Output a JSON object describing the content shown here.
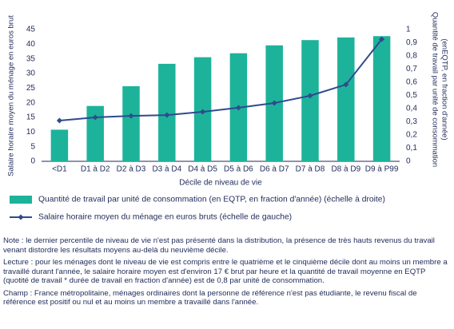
{
  "chart_data": {
    "type": "bar",
    "xlabel": "Décile de niveau de vie",
    "ylabel": "Salaire horaire moyen du ménage en euros brut",
    "y2label": [
      "Quantité de travail par unité de consommation",
      "(enEQTP, en fraction d'année)"
    ],
    "categories": [
      "<D1",
      "D1 à D2",
      "D2 à D3",
      "D3 à D4",
      "D4 à D5",
      "D5 à D6",
      "D6 à D7",
      "D7 à D8",
      "D8 à D9",
      "D9 à P99"
    ],
    "series": [
      {
        "name": "Quantité de travail par unité de consommation (en EQTP, en fraction d'année) (échelle à droite)",
        "type": "bar",
        "axis": "y2",
        "color": "#1db39b",
        "values": [
          0.24,
          0.42,
          0.57,
          0.74,
          0.79,
          0.82,
          0.88,
          0.92,
          0.94,
          0.95
        ]
      },
      {
        "name": "Salaire horaire moyen du ménage en euros bruts (échelle de gauche)",
        "type": "line",
        "color": "#2e4b8c",
        "values": [
          13.9,
          15.0,
          15.5,
          15.8,
          16.9,
          18.3,
          19.9,
          22.4,
          26.2,
          41.7
        ]
      }
    ],
    "ylim": [
      0,
      45
    ],
    "yticks": [
      0,
      5,
      10,
      15,
      20,
      25,
      30,
      35,
      40,
      45
    ],
    "y2lim": [
      0,
      1
    ],
    "y2ticks": [
      0,
      {
        "value": 0.1,
        "label": "0,1"
      },
      {
        "value": 0.2,
        "label": "0,2"
      },
      {
        "value": 0.3,
        "label": "0,3"
      },
      {
        "value": 0.4,
        "label": "0,4"
      },
      {
        "value": 0.5,
        "label": "0,5"
      },
      {
        "value": 0.6,
        "label": "0,6"
      },
      {
        "value": 0.7,
        "label": "0,7"
      },
      {
        "value": 0.8,
        "label": "0,8"
      },
      {
        "value": 0.9,
        "label": "0,9"
      },
      1
    ],
    "grid": false
  },
  "notes": [
    "Note : le dernier percentile de niveau de vie n'est pas présenté dans la distribution, la présence de très hauts revenus du travail venant distordre les résultats moyens au-delà du neuvième décile.",
    "Lecture : pour les ménages dont le niveau de vie est compris entre le quatrième et le cinquième décile dont au moins un membre a travaillé durant l'année, le salaire horaire moyen est d'environ 17 € brut par heure et la quantité de travail moyenne en EQTP (quotité de travail * durée de travail en fraction d'année) est de 0,8 par unité de consommation.",
    "Champ : France métropolitaine, ménages ordinaires dont la personne de référence n'est pas étudiante, le revenu fiscal de référence est positif ou nul et au moins un membre a travaillé dans l'année."
  ]
}
